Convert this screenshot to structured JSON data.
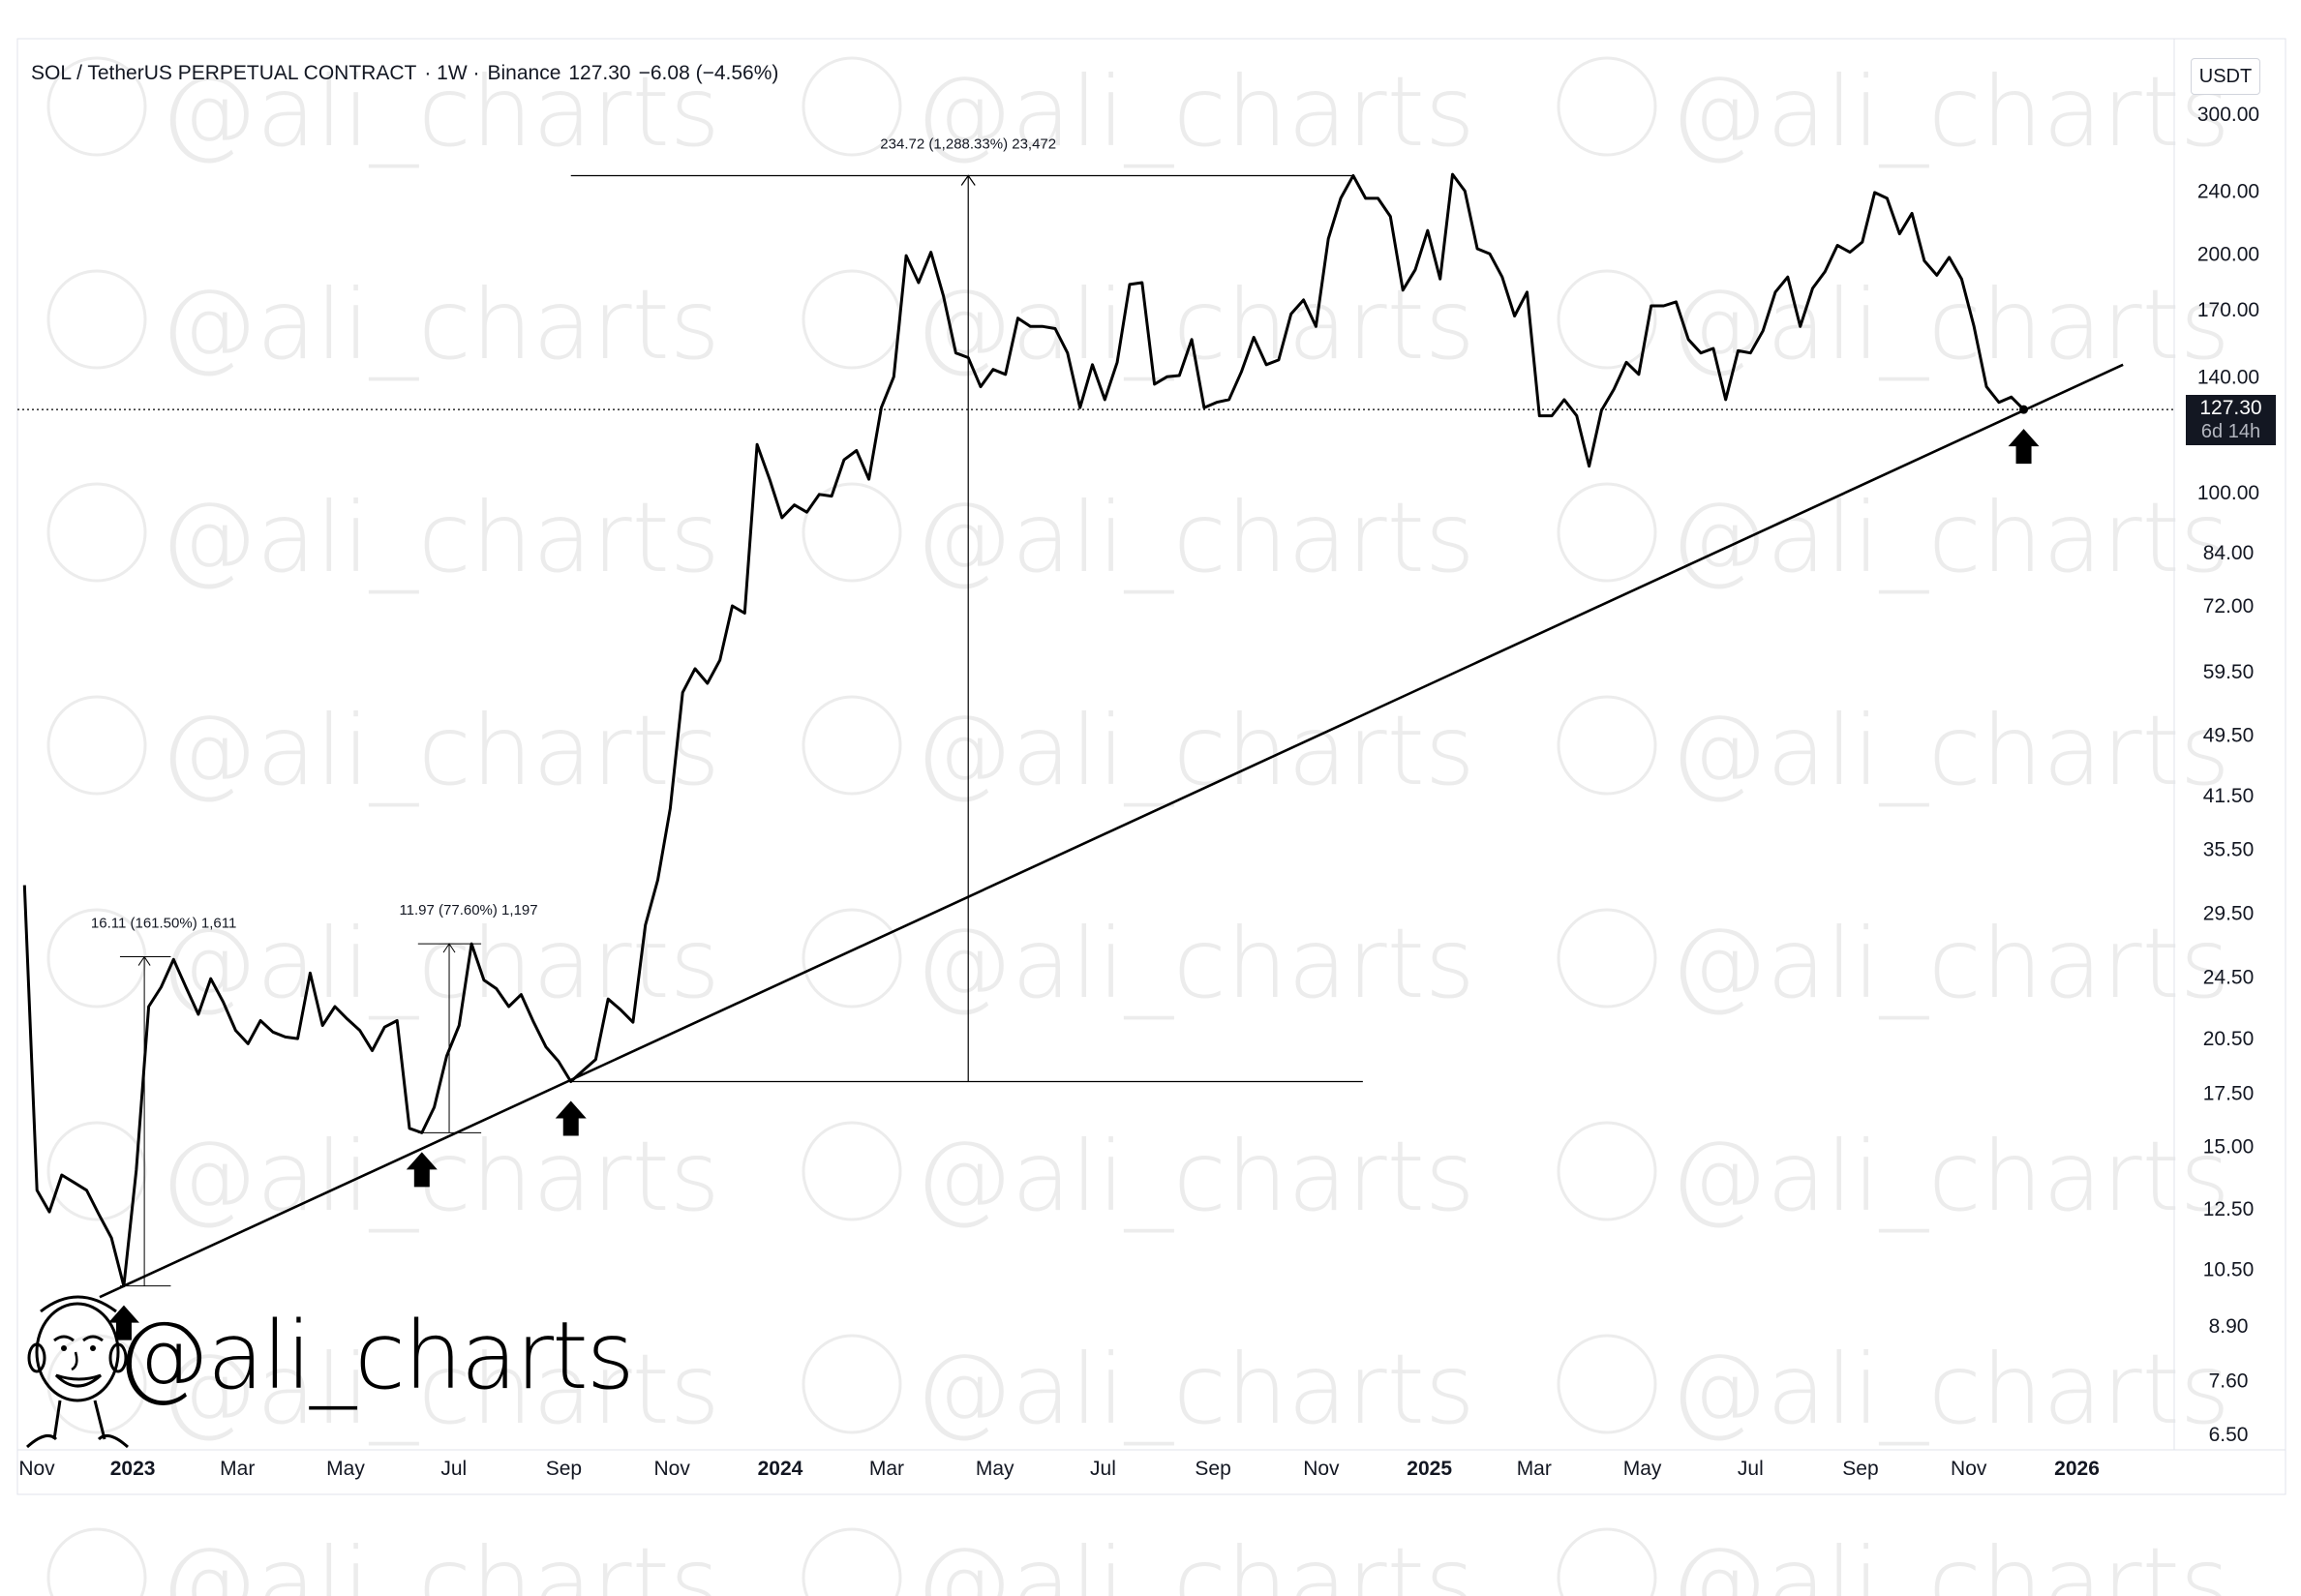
{
  "header": {
    "symbol": "SOL / TetherUS PERPETUAL CONTRACT",
    "interval": "· 1W ·",
    "exchange": "Binance",
    "price": "127.30",
    "change": "−6.08 (−4.56%)"
  },
  "axis": {
    "unit": "USDT"
  },
  "price_label": {
    "value": "127.30",
    "countdown": "6d 14h"
  },
  "watermark": {
    "text": "@ali_charts"
  },
  "brand": {
    "handle": "@ali_charts"
  },
  "colors": {
    "line": "#000000",
    "grid": "#f0f3fa",
    "label_bg": "#131722",
    "watermark": "#ececec"
  },
  "chart_data": {
    "type": "line",
    "scale": "log",
    "ylim": [
      6.5,
      300
    ],
    "y_ticks": [
      300.0,
      240.0,
      200.0,
      170.0,
      140.0,
      100.0,
      84.0,
      72.0,
      59.5,
      49.5,
      41.5,
      35.5,
      29.5,
      24.5,
      20.5,
      17.5,
      15.0,
      12.5,
      10.5,
      8.9,
      7.6,
      6.5
    ],
    "x_ticks": [
      {
        "label": "Nov",
        "bold": false
      },
      {
        "label": "2023",
        "bold": true
      },
      {
        "label": "Mar",
        "bold": false
      },
      {
        "label": "May",
        "bold": false
      },
      {
        "label": "Jul",
        "bold": false
      },
      {
        "label": "Sep",
        "bold": false
      },
      {
        "label": "Nov",
        "bold": false
      },
      {
        "label": "2024",
        "bold": true
      },
      {
        "label": "Mar",
        "bold": false
      },
      {
        "label": "May",
        "bold": false
      },
      {
        "label": "Jul",
        "bold": false
      },
      {
        "label": "Sep",
        "bold": false
      },
      {
        "label": "Nov",
        "bold": false
      },
      {
        "label": "2025",
        "bold": true
      },
      {
        "label": "Mar",
        "bold": false
      },
      {
        "label": "May",
        "bold": false
      },
      {
        "label": "Jul",
        "bold": false
      },
      {
        "label": "Sep",
        "bold": false
      },
      {
        "label": "Nov",
        "bold": false
      },
      {
        "label": "2026",
        "bold": true
      }
    ],
    "series": [
      {
        "points": [
          [
            "2022-11-01",
            32.0
          ],
          [
            "2022-11-08",
            13.2
          ],
          [
            "2022-11-15",
            12.4
          ],
          [
            "2022-11-22",
            13.8
          ],
          [
            "2022-11-29",
            13.5
          ],
          [
            "2022-12-06",
            13.2
          ],
          [
            "2022-12-13",
            12.3
          ],
          [
            "2022-12-20",
            11.5
          ],
          [
            "2022-12-27",
            10.0
          ],
          [
            "2023-01-03",
            14.0
          ],
          [
            "2023-01-10",
            22.5
          ],
          [
            "2023-01-17",
            23.8
          ],
          [
            "2023-01-24",
            25.8
          ],
          [
            "2023-01-31",
            23.8
          ],
          [
            "2023-02-07",
            22.0
          ],
          [
            "2023-02-14",
            24.4
          ],
          [
            "2023-02-21",
            22.8
          ],
          [
            "2023-02-28",
            21.0
          ],
          [
            "2023-03-07",
            20.2
          ],
          [
            "2023-03-14",
            21.6
          ],
          [
            "2023-03-21",
            20.9
          ],
          [
            "2023-03-28",
            20.6
          ],
          [
            "2023-04-04",
            20.5
          ],
          [
            "2023-04-11",
            24.8
          ],
          [
            "2023-04-18",
            21.3
          ],
          [
            "2023-04-25",
            22.5
          ],
          [
            "2023-05-02",
            21.7
          ],
          [
            "2023-05-09",
            21.0
          ],
          [
            "2023-05-16",
            19.8
          ],
          [
            "2023-05-23",
            21.2
          ],
          [
            "2023-05-30",
            21.6
          ],
          [
            "2023-06-06",
            15.8
          ],
          [
            "2023-06-13",
            15.6
          ],
          [
            "2023-06-20",
            16.8
          ],
          [
            "2023-06-27",
            19.5
          ],
          [
            "2023-07-04",
            21.3
          ],
          [
            "2023-07-11",
            27.0
          ],
          [
            "2023-07-18",
            24.3
          ],
          [
            "2023-07-25",
            23.7
          ],
          [
            "2023-08-01",
            22.5
          ],
          [
            "2023-08-08",
            23.3
          ],
          [
            "2023-08-15",
            21.5
          ],
          [
            "2023-08-22",
            20.0
          ],
          [
            "2023-08-29",
            19.2
          ],
          [
            "2023-09-05",
            18.1
          ],
          [
            "2023-09-12",
            18.7
          ],
          [
            "2023-09-19",
            19.3
          ],
          [
            "2023-09-26",
            23.0
          ],
          [
            "2023-10-03",
            22.3
          ],
          [
            "2023-10-10",
            21.5
          ],
          [
            "2023-10-17",
            28.5
          ],
          [
            "2023-10-24",
            32.5
          ],
          [
            "2023-10-31",
            40.0
          ],
          [
            "2023-11-07",
            56.0
          ],
          [
            "2023-11-14",
            60.0
          ],
          [
            "2023-11-21",
            57.5
          ],
          [
            "2023-11-28",
            61.5
          ],
          [
            "2023-12-05",
            72.0
          ],
          [
            "2023-12-12",
            70.5
          ],
          [
            "2023-12-19",
            115.0
          ],
          [
            "2023-12-26",
            104.0
          ],
          [
            "2024-01-02",
            93.0
          ],
          [
            "2024-01-09",
            96.5
          ],
          [
            "2024-01-16",
            94.5
          ],
          [
            "2024-01-23",
            99.5
          ],
          [
            "2024-01-30",
            99.0
          ],
          [
            "2024-02-06",
            110.0
          ],
          [
            "2024-02-13",
            113.0
          ],
          [
            "2024-02-20",
            104.0
          ],
          [
            "2024-02-27",
            128.0
          ],
          [
            "2024-03-05",
            140.0
          ],
          [
            "2024-03-12",
            199.0
          ],
          [
            "2024-03-19",
            184.0
          ],
          [
            "2024-03-26",
            201.0
          ],
          [
            "2024-04-02",
            177.0
          ],
          [
            "2024-04-09",
            150.0
          ],
          [
            "2024-04-16",
            148.0
          ],
          [
            "2024-04-23",
            136.0
          ],
          [
            "2024-04-30",
            143.0
          ],
          [
            "2024-05-07",
            141.0
          ],
          [
            "2024-05-14",
            166.0
          ],
          [
            "2024-05-21",
            162.0
          ],
          [
            "2024-05-28",
            162.0
          ],
          [
            "2024-06-04",
            161.0
          ],
          [
            "2024-06-11",
            150.0
          ],
          [
            "2024-06-18",
            128.0
          ],
          [
            "2024-06-25",
            145.0
          ],
          [
            "2024-07-02",
            131.0
          ],
          [
            "2024-07-09",
            146.0
          ],
          [
            "2024-07-16",
            183.0
          ],
          [
            "2024-07-23",
            184.0
          ],
          [
            "2024-07-30",
            137.0
          ],
          [
            "2024-08-06",
            140.0
          ],
          [
            "2024-08-13",
            140.5
          ],
          [
            "2024-08-20",
            156.0
          ],
          [
            "2024-08-27",
            128.0
          ],
          [
            "2024-09-03",
            130.0
          ],
          [
            "2024-09-10",
            131.0
          ],
          [
            "2024-09-17",
            142.0
          ],
          [
            "2024-09-24",
            157.0
          ],
          [
            "2024-10-01",
            145.0
          ],
          [
            "2024-10-08",
            147.0
          ],
          [
            "2024-10-15",
            168.0
          ],
          [
            "2024-10-22",
            175.0
          ],
          [
            "2024-10-29",
            162.0
          ],
          [
            "2024-11-05",
            209.0
          ],
          [
            "2024-11-12",
            235.0
          ],
          [
            "2024-11-19",
            251.0
          ],
          [
            "2024-11-26",
            235.0
          ],
          [
            "2024-12-03",
            235.0
          ],
          [
            "2024-12-10",
            223.0
          ],
          [
            "2024-12-17",
            180.0
          ],
          [
            "2024-12-24",
            191.0
          ],
          [
            "2024-12-31",
            214.0
          ],
          [
            "2025-01-07",
            186.0
          ],
          [
            "2025-01-14",
            252.0
          ],
          [
            "2025-01-21",
            240.0
          ],
          [
            "2025-01-28",
            203.0
          ],
          [
            "2025-02-04",
            200.0
          ],
          [
            "2025-02-11",
            187.0
          ],
          [
            "2025-02-18",
            167.0
          ],
          [
            "2025-02-25",
            179.0
          ],
          [
            "2025-03-04",
            125.0
          ],
          [
            "2025-03-11",
            125.0
          ],
          [
            "2025-03-18",
            131.0
          ],
          [
            "2025-03-25",
            125.0
          ],
          [
            "2025-04-01",
            108.0
          ],
          [
            "2025-04-08",
            127.0
          ],
          [
            "2025-04-15",
            135.0
          ],
          [
            "2025-04-22",
            146.0
          ],
          [
            "2025-04-29",
            141.0
          ],
          [
            "2025-05-06",
            172.0
          ],
          [
            "2025-05-13",
            172.0
          ],
          [
            "2025-05-20",
            174.0
          ],
          [
            "2025-05-27",
            156.0
          ],
          [
            "2025-06-03",
            150.0
          ],
          [
            "2025-06-10",
            152.0
          ],
          [
            "2025-06-17",
            131.0
          ],
          [
            "2025-06-24",
            151.0
          ],
          [
            "2025-07-01",
            150.0
          ],
          [
            "2025-07-08",
            160.0
          ],
          [
            "2025-07-15",
            179.0
          ],
          [
            "2025-07-22",
            187.0
          ],
          [
            "2025-07-29",
            162.0
          ],
          [
            "2025-08-05",
            181.0
          ],
          [
            "2025-08-12",
            190.0
          ],
          [
            "2025-08-19",
            205.0
          ],
          [
            "2025-08-26",
            201.0
          ],
          [
            "2025-09-02",
            207.0
          ],
          [
            "2025-09-09",
            239.0
          ],
          [
            "2025-09-16",
            235.0
          ],
          [
            "2025-09-23",
            212.0
          ],
          [
            "2025-09-30",
            225.0
          ],
          [
            "2025-10-07",
            196.0
          ],
          [
            "2025-10-14",
            188.0
          ],
          [
            "2025-10-21",
            198.0
          ],
          [
            "2025-10-28",
            186.0
          ],
          [
            "2025-11-04",
            162.0
          ],
          [
            "2025-11-11",
            136.0
          ],
          [
            "2025-11-18",
            130.0
          ],
          [
            "2025-11-25",
            132.0
          ],
          [
            "2025-12-02",
            127.3
          ]
        ]
      }
    ],
    "trendline": [
      [
        "2022-12-27",
        10.0
      ],
      [
        "2026-01-27",
        145.0
      ]
    ],
    "horizontal_line": {
      "value": 127.3
    },
    "measurements": [
      {
        "label": "16.11 (161.50%) 1,611",
        "from": [
          "2022-12-27",
          10.0
        ],
        "to": [
          "2023-01-17",
          26.0
        ]
      },
      {
        "label": "11.97 (77.60%) 1,197",
        "from": [
          "2023-06-13",
          15.6
        ],
        "to": [
          "2023-07-11",
          27.0
        ]
      },
      {
        "label": "234.72 (1,288.33%) 23,472",
        "from": [
          "2023-09-05",
          18.1
        ],
        "to": [
          "2024-11-19",
          251.0
        ],
        "base_line": {
          "from": "2023-09-05",
          "to": "2024-11-19"
        },
        "top_line": {
          "from": "2023-09-05",
          "to": "2024-11-19"
        },
        "vertical_at": "2024-04-16"
      }
    ],
    "arrows": [
      {
        "date": "2022-12-27",
        "value": 10.0
      },
      {
        "date": "2023-06-13",
        "value": 15.6
      },
      {
        "date": "2023-09-05",
        "value": 18.1
      },
      {
        "date": "2025-12-02",
        "value": 127.3
      }
    ]
  }
}
